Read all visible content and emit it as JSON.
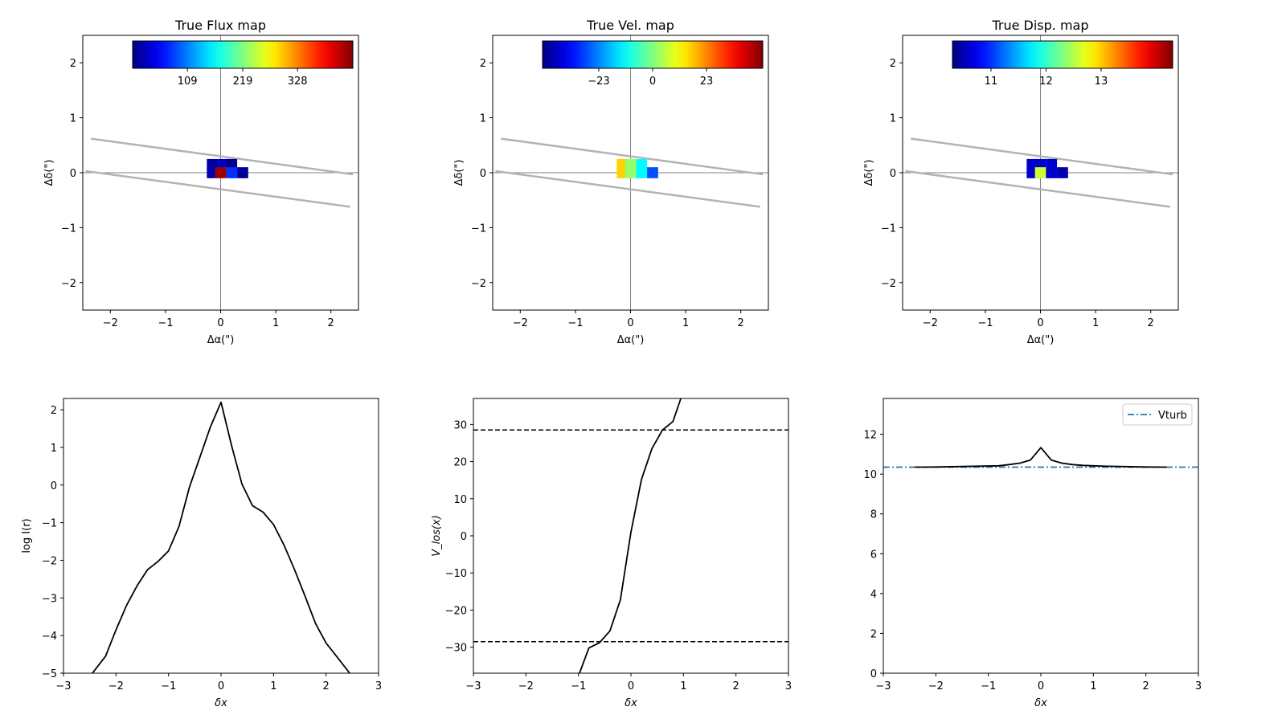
{
  "chart_data": [
    {
      "type": "heatmap",
      "title": "True Flux map",
      "xlabel": "Δα(\")",
      "ylabel": "Δδ(\")",
      "xlim": [
        -2.5,
        2.5
      ],
      "ylim": [
        -2.5,
        2.5
      ],
      "xticks": [
        -2,
        -1,
        0,
        1,
        2
      ],
      "yticks": [
        -2,
        -1,
        0,
        1,
        2
      ],
      "colormap": "jet",
      "colorbar": {
        "ticks": [
          109,
          219,
          328
        ],
        "range": [
          0,
          438
        ],
        "location": "top inset"
      },
      "slit_lines": [
        {
          "x": [
            -2.35,
            2.4
          ],
          "y": [
            0.62,
            -0.03
          ]
        },
        {
          "x": [
            -2.45,
            2.35
          ],
          "y": [
            0.03,
            -0.62
          ]
        }
      ],
      "cells": [
        {
          "x": -0.15,
          "y": 0.15,
          "value": 15
        },
        {
          "x": 0.05,
          "y": 0.15,
          "value": 25
        },
        {
          "x": 0.2,
          "y": 0.15,
          "value": 5
        },
        {
          "x": -0.15,
          "y": 0.0,
          "value": 20
        },
        {
          "x": 0.0,
          "y": 0.0,
          "value": 425
        },
        {
          "x": 0.2,
          "y": 0.0,
          "value": 75
        },
        {
          "x": 0.4,
          "y": 0.0,
          "value": 10
        }
      ]
    },
    {
      "type": "heatmap",
      "title": "True Vel. map",
      "xlabel": "Δα(\")",
      "ylabel": "Δδ(\")",
      "xlim": [
        -2.5,
        2.5
      ],
      "ylim": [
        -2.5,
        2.5
      ],
      "xticks": [
        -2,
        -1,
        0,
        1,
        2
      ],
      "yticks": [
        -2,
        -1,
        0,
        1,
        2
      ],
      "colormap": "jet",
      "colorbar": {
        "ticks": [
          -23,
          0,
          23
        ],
        "range": [
          -47,
          47
        ],
        "location": "top inset"
      },
      "slit_lines": [
        {
          "x": [
            -2.35,
            2.4
          ],
          "y": [
            0.62,
            -0.03
          ]
        },
        {
          "x": [
            -2.45,
            2.35
          ],
          "y": [
            0.03,
            -0.62
          ]
        }
      ],
      "cells": [
        {
          "x": -0.15,
          "y": 0.15,
          "value": 16
        },
        {
          "x": 0.0,
          "y": 0.15,
          "value": 2
        },
        {
          "x": 0.2,
          "y": 0.15,
          "value": -12
        },
        {
          "x": -0.15,
          "y": 0.0,
          "value": 16
        },
        {
          "x": 0.0,
          "y": 0.0,
          "value": 2
        },
        {
          "x": 0.2,
          "y": 0.0,
          "value": -12
        },
        {
          "x": 0.4,
          "y": 0.0,
          "value": -28
        }
      ]
    },
    {
      "type": "heatmap",
      "title": "True Disp. map",
      "xlabel": "Δα(\")",
      "ylabel": "Δδ(\")",
      "xlim": [
        -2.5,
        2.5
      ],
      "ylim": [
        -2.5,
        2.5
      ],
      "xticks": [
        -2,
        -1,
        0,
        1,
        2
      ],
      "yticks": [
        -2,
        -1,
        0,
        1,
        2
      ],
      "colormap": "jet",
      "colorbar": {
        "ticks": [
          11,
          12,
          13
        ],
        "range": [
          10.3,
          14.3
        ],
        "location": "top inset"
      },
      "slit_lines": [
        {
          "x": [
            -2.35,
            2.4
          ],
          "y": [
            0.62,
            -0.03
          ]
        },
        {
          "x": [
            -2.45,
            2.35
          ],
          "y": [
            0.03,
            -0.62
          ]
        }
      ],
      "cells": [
        {
          "x": -0.15,
          "y": 0.15,
          "value": 10.6
        },
        {
          "x": 0.0,
          "y": 0.15,
          "value": 10.6
        },
        {
          "x": 0.2,
          "y": 0.15,
          "value": 10.6
        },
        {
          "x": -0.15,
          "y": 0.0,
          "value": 10.6
        },
        {
          "x": 0.0,
          "y": 0.0,
          "value": 12.6
        },
        {
          "x": 0.2,
          "y": 0.0,
          "value": 10.6
        },
        {
          "x": 0.4,
          "y": 0.0,
          "value": 10.5
        }
      ]
    },
    {
      "type": "line",
      "title": "",
      "xlabel": "δx",
      "ylabel": "log I(r)",
      "xlim": [
        -3,
        3
      ],
      "ylim": [
        -5,
        2.3
      ],
      "xticks": [
        -3,
        -2,
        -1,
        0,
        1,
        2,
        3
      ],
      "yticks": [
        -5,
        -4,
        -3,
        -2,
        -1,
        0,
        1,
        2
      ],
      "series": [
        {
          "x": [
            -2.45,
            -2.2,
            -2.0,
            -1.8,
            -1.6,
            -1.4,
            -1.2,
            -1.0,
            -0.8,
            -0.6,
            -0.4,
            -0.2,
            0.0,
            0.2,
            0.4,
            0.6,
            0.8,
            1.0,
            1.2,
            1.4,
            1.6,
            1.8,
            2.0,
            2.2,
            2.45
          ],
          "y": [
            -5.0,
            -4.55,
            -3.85,
            -3.2,
            -2.68,
            -2.25,
            -2.03,
            -1.75,
            -1.1,
            -0.05,
            0.75,
            1.55,
            2.2,
            1.05,
            0.02,
            -0.55,
            -0.72,
            -1.05,
            -1.6,
            -2.25,
            -2.95,
            -3.68,
            -4.2,
            -4.55,
            -5.0
          ],
          "color": "#000000"
        }
      ]
    },
    {
      "type": "line",
      "title": "",
      "xlabel": "δx",
      "ylabel": "V_los(x)",
      "xlim": [
        -3,
        3
      ],
      "ylim": [
        -37,
        37
      ],
      "xticks": [
        -3,
        -2,
        -1,
        0,
        1,
        2,
        3
      ],
      "yticks": [
        -30,
        -20,
        -10,
        0,
        10,
        20,
        30
      ],
      "hlines": [
        28.5,
        -28.5
      ],
      "series": [
        {
          "x": [
            -0.98,
            -0.8,
            -0.6,
            -0.4,
            -0.2,
            0.0,
            0.2,
            0.4,
            0.6,
            0.8,
            0.95
          ],
          "y": [
            -37,
            -30.2,
            -28.8,
            -25.6,
            -17.2,
            1.0,
            15.2,
            23.5,
            28.5,
            30.8,
            37
          ],
          "color": "#000000"
        }
      ]
    },
    {
      "type": "line",
      "title": "",
      "xlabel": "δx",
      "ylabel": "",
      "xlim": [
        -3,
        3
      ],
      "ylim": [
        0,
        13.8
      ],
      "xticks": [
        -3,
        -2,
        -1,
        0,
        1,
        2,
        3
      ],
      "yticks": [
        0,
        2,
        4,
        6,
        8,
        10,
        12
      ],
      "legend_position": "top-right",
      "series": [
        {
          "name": "Vturb",
          "x": [
            -3,
            3
          ],
          "y": [
            10.35,
            10.35
          ],
          "color": "#1f77b4",
          "style": "dash-dot"
        },
        {
          "x": [
            -2.4,
            -2.0,
            -1.6,
            -1.2,
            -0.8,
            -0.6,
            -0.4,
            -0.2,
            0.0,
            0.2,
            0.4,
            0.6,
            0.8,
            1.2,
            1.6,
            2.0,
            2.4
          ],
          "y": [
            10.35,
            10.36,
            10.38,
            10.4,
            10.42,
            10.48,
            10.55,
            10.7,
            11.33,
            10.7,
            10.55,
            10.48,
            10.44,
            10.4,
            10.38,
            10.36,
            10.35
          ],
          "color": "#000000"
        }
      ]
    }
  ]
}
